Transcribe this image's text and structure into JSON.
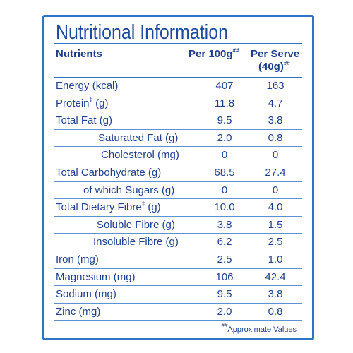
{
  "title": "Nutritional Information",
  "columns": {
    "nutrients": "Nutrients",
    "per100_label": "Per 100g",
    "per100_mark": "##",
    "serve_label": "Per Serve",
    "serve_size": "(40g)",
    "serve_mark": "##"
  },
  "rows": [
    {
      "label": "Energy (kcal)",
      "per100": "407",
      "serve": "163"
    },
    {
      "label": "Protein",
      "mark": "‡",
      "unit": " (g)",
      "per100": "11.8",
      "serve": "4.7"
    },
    {
      "label": "Total Fat (g)",
      "per100": "9.5",
      "serve": "3.8"
    },
    {
      "label": "Saturated Fat (g)",
      "per100": "2.0",
      "serve": "0.8"
    },
    {
      "label": "Cholesterol (mg)",
      "per100": "0",
      "serve": "0"
    },
    {
      "label": "Total Carbohydrate (g)",
      "per100": "68.5",
      "serve": "27.4"
    },
    {
      "label": "of which Sugars (g)",
      "per100": "0",
      "serve": "0"
    },
    {
      "label": "Total Dietary Fibre",
      "mark": "‡",
      "unit": " (g)",
      "per100": "10.0",
      "serve": "4.0"
    },
    {
      "label": "Soluble Fibre (g)",
      "per100": "3.8",
      "serve": "1.5"
    },
    {
      "label": "Insoluble Fibre (g)",
      "per100": "6.2",
      "serve": "2.5"
    },
    {
      "label": "Iron (mg)",
      "per100": "2.5",
      "serve": "1.0"
    },
    {
      "label": "Magnesium (mg)",
      "per100": "106",
      "serve": "42.4"
    },
    {
      "label": "Sodium (mg)",
      "per100": "9.5",
      "serve": "3.8"
    },
    {
      "label": "Zinc (mg)",
      "per100": "2.0",
      "serve": "0.8"
    }
  ],
  "footnote": {
    "mark": "##",
    "text": "Approximate Values"
  },
  "colors": {
    "border": "#2e74c6",
    "text": "#1f3f8e"
  }
}
